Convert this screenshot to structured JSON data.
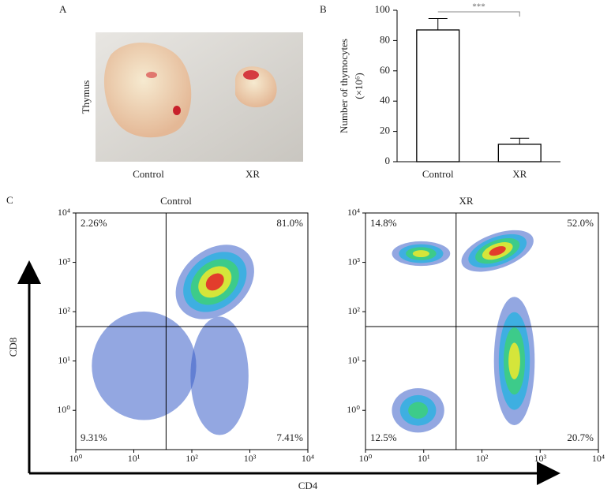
{
  "panels": {
    "a": "A",
    "b": "B",
    "c": "C"
  },
  "photo": {
    "side_label": "Thymus",
    "labels": [
      "Control",
      "XR"
    ]
  },
  "axes": {
    "xlabel": "CD4",
    "ylabel": "CD8"
  },
  "chart_data": [
    {
      "type": "bar",
      "ylabel": "Number of thymocytes",
      "ylabel2": "(×10⁶)",
      "categories": [
        "Control",
        "XR"
      ],
      "values": [
        87,
        11.5
      ],
      "errors": [
        7.5,
        4
      ],
      "color": "#ffffff",
      "ylim": [
        0,
        100
      ],
      "yticks": [
        0,
        20,
        40,
        60,
        80,
        100
      ],
      "annotation": "***"
    },
    {
      "type": "flow",
      "title": "Control",
      "xscale": "log",
      "yscale": "log",
      "xlim": [
        1,
        10000
      ],
      "ylim": [
        0.16,
        10000
      ],
      "xticks": [
        {
          "value": 1,
          "label": "10⁰"
        },
        {
          "value": 10,
          "label": "10¹"
        },
        {
          "value": 100,
          "label": "10²"
        },
        {
          "value": 1000,
          "label": "10³"
        },
        {
          "value": 10000,
          "label": "10⁴"
        }
      ],
      "yticks": [
        {
          "value": 1,
          "label": "10⁰"
        },
        {
          "value": 10,
          "label": "10¹"
        },
        {
          "value": 100,
          "label": "10²"
        },
        {
          "value": 1000,
          "label": "10³"
        },
        {
          "value": 10000,
          "label": "10⁴"
        }
      ],
      "gate_x": 36,
      "gate_y": 50,
      "density_colors": [
        "#3a5fc8",
        "#2fb0e0",
        "#3dd07a",
        "#f0ea2c",
        "#e4202a"
      ],
      "populations": [
        {
          "x": 15,
          "y": 8,
          "sx": 0.9,
          "sy": 1.1,
          "tilt": 0,
          "level": 0
        },
        {
          "x": 300,
          "y": 5,
          "sx": 0.5,
          "sy": 1.2,
          "tilt": 0,
          "level": 0
        },
        {
          "x": 250,
          "y": 400,
          "sx": 0.75,
          "sy": 0.65,
          "tilt": -40,
          "level": 4
        }
      ],
      "quadrants": [
        {
          "corner": "upper-left",
          "value": 2.26,
          "label": "2.26%"
        },
        {
          "corner": "upper-right",
          "value": 81.0,
          "label": "81.0%"
        },
        {
          "corner": "lower-left",
          "value": 9.31,
          "label": "9.31%"
        },
        {
          "corner": "lower-right",
          "value": 7.41,
          "label": "7.41%"
        }
      ]
    },
    {
      "type": "flow",
      "title": "XR",
      "xscale": "log",
      "yscale": "log",
      "xlim": [
        1,
        10000
      ],
      "ylim": [
        0.16,
        10000
      ],
      "xticks": [
        {
          "value": 1,
          "label": "10⁰"
        },
        {
          "value": 10,
          "label": "10¹"
        },
        {
          "value": 100,
          "label": "10²"
        },
        {
          "value": 1000,
          "label": "10³"
        },
        {
          "value": 10000,
          "label": "10⁴"
        }
      ],
      "yticks": [
        {
          "value": 1,
          "label": "10⁰"
        },
        {
          "value": 10,
          "label": "10¹"
        },
        {
          "value": 100,
          "label": "10²"
        },
        {
          "value": 1000,
          "label": "10³"
        },
        {
          "value": 10000,
          "label": "10⁴"
        }
      ],
      "gate_x": 36,
      "gate_y": 50,
      "density_colors": [
        "#3a5fc8",
        "#2fb0e0",
        "#3dd07a",
        "#f0ea2c",
        "#e4202a"
      ],
      "populations": [
        {
          "x": 8,
          "y": 1,
          "sx": 0.45,
          "sy": 0.45,
          "tilt": 0,
          "level": 2
        },
        {
          "x": 360,
          "y": 10,
          "sx": 0.35,
          "sy": 1.3,
          "tilt": 0,
          "level": 3
        },
        {
          "x": 9,
          "y": 1500,
          "sx": 0.5,
          "sy": 0.25,
          "tilt": 0,
          "level": 3
        },
        {
          "x": 185,
          "y": 1700,
          "sx": 0.65,
          "sy": 0.35,
          "tilt": -20,
          "level": 4
        }
      ],
      "quadrants": [
        {
          "corner": "upper-left",
          "value": 14.8,
          "label": "14.8%"
        },
        {
          "corner": "upper-right",
          "value": 52.0,
          "label": "52.0%"
        },
        {
          "corner": "lower-left",
          "value": 12.5,
          "label": "12.5%"
        },
        {
          "corner": "lower-right",
          "value": 20.7,
          "label": "20.7%"
        }
      ]
    }
  ]
}
